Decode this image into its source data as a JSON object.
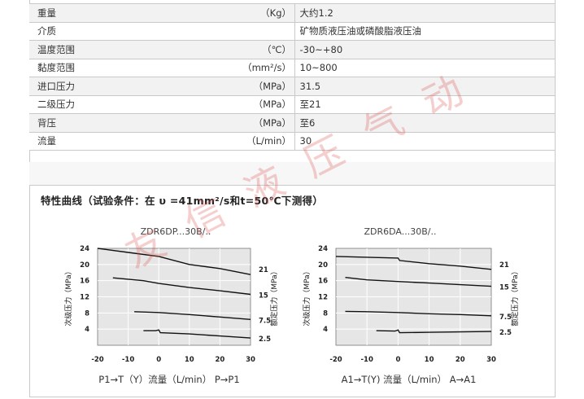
{
  "specs": [
    {
      "name": "重量",
      "unit": "（Kg）",
      "value": "大约1.2"
    },
    {
      "name": "介质",
      "unit": "",
      "value": "矿物质液压油或磷酸脂液压油"
    },
    {
      "name": "温度范围",
      "unit": "（℃）",
      "value": "-30~+80"
    },
    {
      "name": "黏度范围",
      "unit": "（mm²/s）",
      "value": "10~800"
    },
    {
      "name": "进口压力",
      "unit": "（MPa）",
      "value": "31.5"
    },
    {
      "name": "二级压力",
      "unit": "（MPa）",
      "value": "至21"
    },
    {
      "name": "背压",
      "unit": "（MPa）",
      "value": "至6"
    },
    {
      "name": "流量",
      "unit": "（L/min）",
      "value": "30"
    }
  ],
  "curves_title": "特性曲线（试验条件：在 υ =41mm²/s和t=50℃下测得）",
  "watermark": "友信液压气动",
  "chart_data": [
    {
      "type": "line",
      "title": "ZDR6DP...30B/..",
      "xlabel": "P1→T（Y）流量（L/min） P→P1",
      "ylabel_left": "次级压力（MPa）",
      "ylabel_right": "额定压力（MPa）",
      "xticks": [
        -20,
        -10,
        0,
        10,
        20,
        30
      ],
      "yticks": [
        4,
        8,
        12,
        16,
        20,
        24
      ],
      "right_labels": [
        "21",
        "15",
        "7.5",
        "2.5"
      ],
      "xlim": [
        -20,
        30
      ],
      "ylim": [
        0,
        24
      ],
      "grid": true,
      "series": [
        {
          "x": [
            -20,
            -10,
            0,
            10,
            20,
            30
          ],
          "y": [
            24,
            23,
            22,
            20,
            19,
            17.5
          ]
        },
        {
          "x": [
            -15,
            -5,
            0,
            10,
            20,
            30
          ],
          "y": [
            16.7,
            16,
            15.3,
            14.3,
            13.5,
            12.6
          ]
        },
        {
          "x": [
            -8,
            0,
            10,
            20,
            30
          ],
          "y": [
            8.3,
            8.1,
            7.6,
            7,
            6.4
          ]
        },
        {
          "x": [
            -5,
            -1,
            0,
            0.5,
            10,
            20,
            30
          ],
          "y": [
            3.6,
            3.6,
            3.8,
            3.1,
            2.8,
            2.3,
            1.8
          ]
        }
      ]
    },
    {
      "type": "line",
      "title": "ZDR6DA...30B/..",
      "xlabel": "A1→T(Y) 流量（L/min） A→A1",
      "ylabel_left": "次级压力（MPa）",
      "ylabel_right": "额定压力（MPa）",
      "xticks": [
        -20,
        -10,
        0,
        10,
        20,
        30
      ],
      "yticks": [
        4,
        8,
        12,
        16,
        20,
        24
      ],
      "right_labels": [
        "21",
        "15",
        "7.5",
        "2.5"
      ],
      "xlim": [
        -20,
        30
      ],
      "ylim": [
        0,
        24
      ],
      "grid": true,
      "series": [
        {
          "x": [
            -20,
            -10,
            0,
            0.5,
            10,
            20,
            30
          ],
          "y": [
            22,
            21.8,
            21.6,
            21,
            20.2,
            19.6,
            18.8
          ]
        },
        {
          "x": [
            -17,
            -10,
            0,
            10,
            20,
            30
          ],
          "y": [
            16.8,
            16.2,
            15.8,
            15.4,
            15,
            14.6
          ]
        },
        {
          "x": [
            -17,
            -10,
            0,
            10,
            20,
            30
          ],
          "y": [
            8.4,
            8.3,
            8.1,
            7.8,
            7.6,
            7.3
          ]
        },
        {
          "x": [
            -7,
            -1,
            0,
            0.5,
            10,
            20,
            30
          ],
          "y": [
            3.6,
            3.5,
            3.8,
            3.1,
            3.2,
            3.3,
            3.4
          ]
        }
      ]
    }
  ]
}
